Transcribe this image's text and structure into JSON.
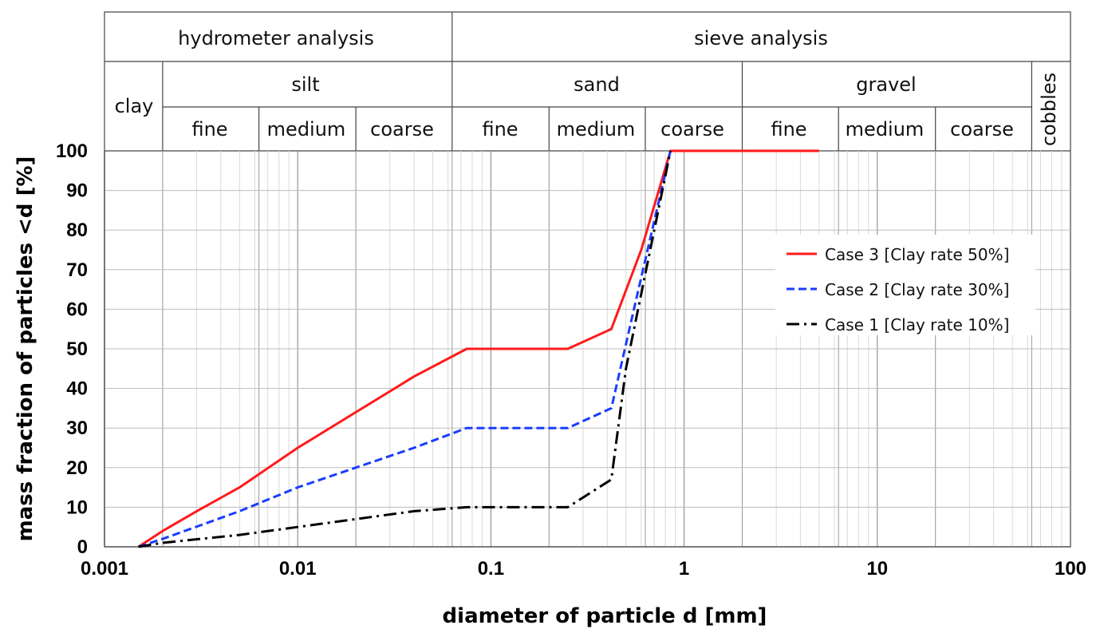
{
  "chart_data": {
    "type": "line",
    "title": "",
    "xlabel": "diameter of particle d [mm]",
    "ylabel": "mass fraction of particles <d  [%]",
    "x_scale": "log",
    "xlim": [
      0.001,
      100
    ],
    "ylim": [
      0,
      100
    ],
    "x_ticks": [
      "0.001",
      "0.01",
      "0.1",
      "1",
      "10",
      "100"
    ],
    "y_ticks": [
      "0",
      "10",
      "20",
      "30",
      "40",
      "50",
      "60",
      "70",
      "80",
      "90",
      "100"
    ],
    "grid": true,
    "legend_position": "right",
    "header": {
      "hydrometer": "hydrometer analysis",
      "sieve": "sieve analysis",
      "clay": "clay",
      "silt": "silt",
      "sand": "sand",
      "gravel": "gravel",
      "cobbles": "cobbles",
      "fine": "fine",
      "medium": "medium",
      "coarse": "coarse"
    },
    "series": [
      {
        "name": "Case 3 [Clay rate 50%]",
        "color": "#ff1a1a",
        "dash": "solid",
        "points": [
          [
            0.0015,
            0
          ],
          [
            0.002,
            4
          ],
          [
            0.003,
            9
          ],
          [
            0.005,
            15
          ],
          [
            0.01,
            25
          ],
          [
            0.02,
            34
          ],
          [
            0.04,
            43
          ],
          [
            0.075,
            50
          ],
          [
            0.1,
            50
          ],
          [
            0.25,
            50
          ],
          [
            0.42,
            55
          ],
          [
            0.6,
            75
          ],
          [
            0.85,
            100
          ],
          [
            5,
            100
          ]
        ]
      },
      {
        "name": "Case 2 [Clay rate 30%]",
        "color": "#1a3cff",
        "dash": "dashed",
        "points": [
          [
            0.0015,
            0
          ],
          [
            0.002,
            2
          ],
          [
            0.005,
            9
          ],
          [
            0.01,
            15
          ],
          [
            0.02,
            20
          ],
          [
            0.04,
            25
          ],
          [
            0.075,
            30
          ],
          [
            0.1,
            30
          ],
          [
            0.25,
            30
          ],
          [
            0.42,
            35
          ],
          [
            0.55,
            60
          ],
          [
            0.85,
            100
          ]
        ]
      },
      {
        "name": "Case 1 [Clay rate 10%]",
        "color": "#000000",
        "dash": "dashdot",
        "points": [
          [
            0.0015,
            0
          ],
          [
            0.002,
            1
          ],
          [
            0.005,
            3
          ],
          [
            0.01,
            5
          ],
          [
            0.02,
            7
          ],
          [
            0.04,
            9
          ],
          [
            0.075,
            10
          ],
          [
            0.1,
            10
          ],
          [
            0.25,
            10
          ],
          [
            0.42,
            17
          ],
          [
            0.5,
            45
          ],
          [
            0.85,
            100
          ]
        ]
      }
    ]
  }
}
